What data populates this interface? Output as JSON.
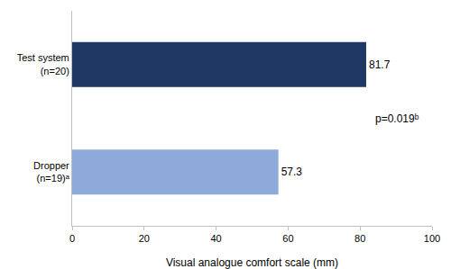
{
  "chart_data": {
    "type": "bar",
    "orientation": "horizontal",
    "categories": [
      "Test system (n=20)",
      "Dropper (n=19)ᵃ"
    ],
    "values": [
      81.7,
      57.3
    ],
    "colors": [
      "#1f3864",
      "#8eaadb"
    ],
    "xlabel": "Visual analogue comfort scale (mm)",
    "xlim": [
      0,
      100
    ],
    "xticks": [
      0,
      20,
      40,
      60,
      80,
      100
    ],
    "data_labels": true,
    "grid": false,
    "annotations": [
      {
        "text": "p=0.019ᵇ"
      }
    ]
  }
}
